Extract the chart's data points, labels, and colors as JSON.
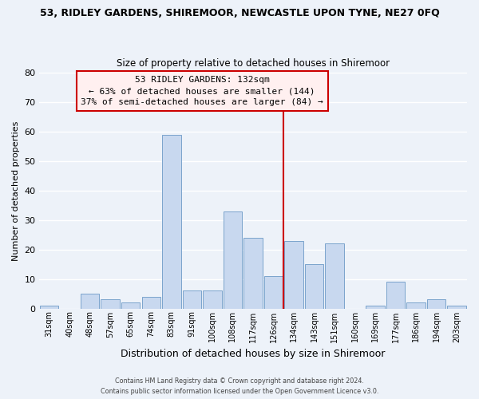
{
  "title": "53, RIDLEY GARDENS, SHIREMOOR, NEWCASTLE UPON TYNE, NE27 0FQ",
  "subtitle": "Size of property relative to detached houses in Shiremoor",
  "xlabel": "Distribution of detached houses by size in Shiremoor",
  "ylabel": "Number of detached properties",
  "categories": [
    "31sqm",
    "40sqm",
    "48sqm",
    "57sqm",
    "65sqm",
    "74sqm",
    "83sqm",
    "91sqm",
    "100sqm",
    "108sqm",
    "117sqm",
    "126sqm",
    "134sqm",
    "143sqm",
    "151sqm",
    "160sqm",
    "169sqm",
    "177sqm",
    "186sqm",
    "194sqm",
    "203sqm"
  ],
  "values": [
    1,
    0,
    5,
    3,
    2,
    4,
    59,
    6,
    6,
    33,
    24,
    11,
    23,
    15,
    22,
    0,
    1,
    9,
    2,
    3,
    1
  ],
  "bar_color": "#c8d8ef",
  "bar_edge_color": "#7ba3cc",
  "background_color": "#edf2f9",
  "grid_color": "#ffffff",
  "ylim": [
    0,
    80
  ],
  "yticks": [
    0,
    10,
    20,
    30,
    40,
    50,
    60,
    70,
    80
  ],
  "vline_color": "#cc0000",
  "annotation_title": "53 RIDLEY GARDENS: 132sqm",
  "annotation_line1": "← 63% of detached houses are smaller (144)",
  "annotation_line2": "37% of semi-detached houses are larger (84) →",
  "annotation_box_color": "#fff0f0",
  "annotation_edge_color": "#cc0000",
  "footer1": "Contains HM Land Registry data © Crown copyright and database right 2024.",
  "footer2": "Contains public sector information licensed under the Open Government Licence v3.0."
}
